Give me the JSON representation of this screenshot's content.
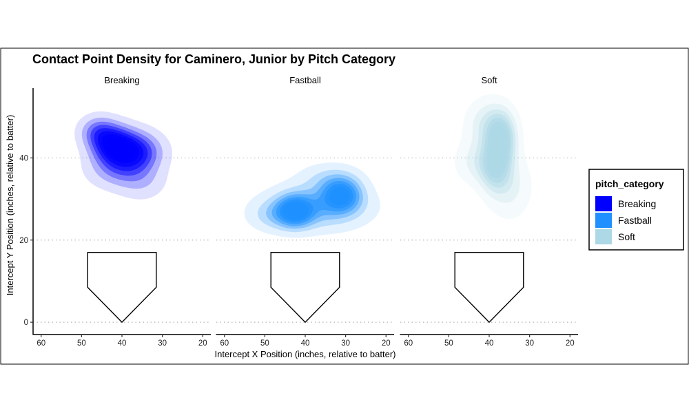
{
  "chart_data": {
    "type": "density",
    "title": "Contact Point Density for Caminero, Junior by Pitch Category",
    "xlabel": "Intercept X Position (inches, relative to batter)",
    "ylabel": "Intercept Y Position (inches, relative to batter)",
    "xlim": [
      62,
      18
    ],
    "ylim": [
      -3,
      57
    ],
    "x_reversed": true,
    "x_ticks": [
      60,
      50,
      40,
      30,
      20
    ],
    "x_tick_labels": [
      "60",
      "50",
      "40",
      "30",
      "20"
    ],
    "y_ticks": [
      0,
      20,
      40
    ],
    "y_tick_labels": [
      "0",
      "20",
      "40"
    ],
    "y_gridlines": [
      0,
      20,
      40
    ],
    "grid": "horizontal dotted",
    "legend": {
      "title": "pitch_category",
      "placement": "right",
      "entries": [
        {
          "label": "Breaking",
          "color": "#0000ff"
        },
        {
          "label": "Fastball",
          "color": "#1e90ff"
        },
        {
          "label": "Soft",
          "color": "#add8e6"
        }
      ]
    },
    "home_plate": [
      [
        48.5,
        17
      ],
      [
        31.5,
        17
      ],
      [
        31.5,
        8.5
      ],
      [
        40,
        0
      ],
      [
        48.5,
        8.5
      ]
    ],
    "facets": [
      {
        "name": "Breaking",
        "color": "#0000ff",
        "density_peaks": [
          {
            "x": 37.5,
            "y": 41.5,
            "sx": 4.5,
            "sy": 3.2,
            "w": 1.0
          },
          {
            "x": 42.5,
            "y": 43.5,
            "sx": 3.5,
            "sy": 3.0,
            "w": 0.85
          },
          {
            "x": 46.0,
            "y": 46.5,
            "sx": 3.0,
            "sy": 2.5,
            "w": 0.45
          },
          {
            "x": 41.0,
            "y": 37.0,
            "sx": 5.0,
            "sy": 3.0,
            "w": 0.35
          },
          {
            "x": 35.0,
            "y": 34.0,
            "sx": 4.0,
            "sy": 3.0,
            "w": 0.2
          }
        ]
      },
      {
        "name": "Fastball",
        "color": "#1e90ff",
        "density_peaks": [
          {
            "x": 42.5,
            "y": 27.0,
            "sx": 3.0,
            "sy": 2.5,
            "w": 1.0
          },
          {
            "x": 31.0,
            "y": 31.0,
            "sx": 3.2,
            "sy": 2.7,
            "w": 1.0
          },
          {
            "x": 37.0,
            "y": 28.0,
            "sx": 8.0,
            "sy": 3.5,
            "w": 0.55
          },
          {
            "x": 34.0,
            "y": 35.0,
            "sx": 5.0,
            "sy": 2.5,
            "w": 0.25
          },
          {
            "x": 48.0,
            "y": 26.0,
            "sx": 4.0,
            "sy": 2.5,
            "w": 0.25
          }
        ]
      },
      {
        "name": "Soft",
        "color": "#add8e6",
        "density_peaks": [
          {
            "x": 37.0,
            "y": 44.5,
            "sx": 2.3,
            "sy": 4.0,
            "w": 1.0
          },
          {
            "x": 38.5,
            "y": 38.0,
            "sx": 2.5,
            "sy": 4.0,
            "w": 0.8
          },
          {
            "x": 40.0,
            "y": 48.0,
            "sx": 3.5,
            "sy": 4.0,
            "w": 0.45
          },
          {
            "x": 35.0,
            "y": 33.0,
            "sx": 3.5,
            "sy": 5.0,
            "w": 0.3
          },
          {
            "x": 43.0,
            "y": 39.0,
            "sx": 3.5,
            "sy": 3.5,
            "w": 0.3
          }
        ]
      }
    ]
  }
}
